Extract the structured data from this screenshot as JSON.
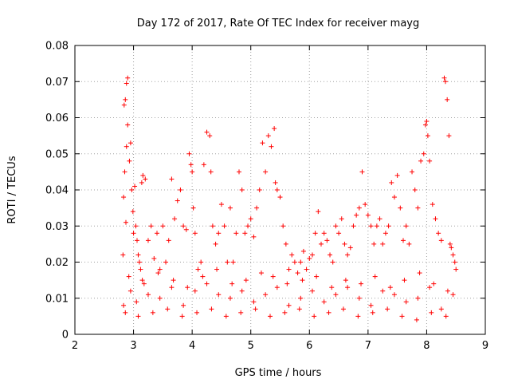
{
  "chart_data": {
    "type": "scatter",
    "title": "Day 172 of 2017, Rate Of TEC Index for receiver mayg",
    "xlabel": "GPS time / hours",
    "ylabel": "ROTI / TECUs",
    "xlim": [
      2,
      9
    ],
    "ylim": [
      0,
      0.08
    ],
    "xticks": [
      2,
      3,
      4,
      5,
      6,
      7,
      8,
      9
    ],
    "yticks": [
      0,
      0.01,
      0.02,
      0.03,
      0.04,
      0.05,
      0.06,
      0.07,
      0.08
    ],
    "xtick_labels": [
      "2",
      "3",
      "4",
      "5",
      "6",
      "7",
      "8",
      "9"
    ],
    "ytick_labels": [
      "0",
      "0.01",
      "0.02",
      "0.03",
      "0.04",
      "0.05",
      "0.06",
      "0.07",
      "0.08"
    ],
    "grid": true,
    "marker": "+",
    "marker_color": "#ff0000",
    "series": [
      {
        "name": "ROTI",
        "x": [
          2.82,
          2.84,
          2.86,
          2.88,
          2.9,
          2.9,
          2.88,
          2.85,
          2.83,
          2.87,
          2.93,
          2.95,
          2.97,
          2.99,
          3.0,
          3.02,
          3.04,
          3.06,
          3.08,
          3.1,
          3.12,
          3.14,
          3.16,
          3.2,
          3.25,
          3.3,
          3.35,
          3.4,
          3.45,
          3.5,
          3.55,
          3.6,
          3.65,
          3.7,
          3.75,
          3.8,
          3.85,
          3.9,
          3.95,
          3.98,
          4.0,
          4.02,
          4.05,
          4.1,
          4.15,
          4.2,
          4.25,
          4.3,
          4.32,
          4.35,
          4.4,
          4.45,
          4.5,
          4.55,
          4.6,
          4.65,
          4.7,
          4.75,
          4.8,
          4.85,
          4.9,
          4.95,
          5.0,
          5.05,
          5.1,
          5.15,
          5.2,
          5.25,
          5.3,
          5.35,
          5.4,
          5.42,
          5.45,
          5.5,
          5.55,
          5.6,
          5.65,
          5.7,
          5.75,
          5.8,
          5.85,
          5.9,
          5.95,
          6.0,
          6.05,
          6.1,
          6.15,
          6.2,
          6.25,
          6.3,
          6.35,
          6.4,
          6.45,
          6.5,
          6.55,
          6.6,
          6.65,
          6.7,
          6.75,
          6.8,
          6.85,
          6.9,
          6.95,
          7.0,
          7.05,
          7.1,
          7.15,
          7.2,
          7.25,
          7.3,
          7.35,
          7.4,
          7.45,
          7.5,
          7.55,
          7.6,
          7.65,
          7.7,
          7.75,
          7.8,
          7.85,
          7.9,
          7.95,
          7.98,
          8.0,
          8.02,
          8.05,
          8.1,
          8.15,
          8.2,
          8.25,
          8.3,
          8.32,
          8.35,
          8.38,
          8.4,
          8.42,
          8.45,
          8.48,
          8.5,
          2.83,
          2.95,
          3.05,
          3.15,
          3.25,
          3.45,
          3.65,
          3.85,
          4.05,
          4.25,
          4.45,
          4.65,
          4.85,
          5.05,
          5.25,
          5.45,
          5.65,
          5.85,
          6.05,
          6.25,
          6.45,
          6.65,
          6.85,
          7.05,
          7.25,
          7.45,
          7.65,
          7.85,
          8.05,
          8.25,
          8.45,
          2.92,
          3.18,
          3.42,
          3.68,
          3.92,
          4.18,
          4.42,
          4.68,
          4.92,
          5.18,
          5.38,
          5.62,
          5.88,
          6.12,
          6.38,
          6.62,
          6.88,
          7.12,
          7.38,
          7.62,
          7.88,
          8.12,
          8.36,
          2.86,
          3.08,
          3.33,
          3.58,
          3.83,
          4.08,
          4.33,
          4.58,
          4.83,
          5.08,
          5.33,
          5.58,
          5.83,
          6.08,
          6.33,
          6.58,
          6.83,
          7.08,
          7.33,
          7.58,
          7.83,
          8.08,
          8.33
        ],
        "y": [
          0.022,
          0.0635,
          0.065,
          0.0695,
          0.071,
          0.058,
          0.052,
          0.045,
          0.038,
          0.031,
          0.048,
          0.053,
          0.04,
          0.034,
          0.028,
          0.041,
          0.03,
          0.026,
          0.022,
          0.02,
          0.018,
          0.042,
          0.044,
          0.043,
          0.026,
          0.03,
          0.021,
          0.028,
          0.018,
          0.03,
          0.02,
          0.026,
          0.043,
          0.032,
          0.037,
          0.04,
          0.03,
          0.029,
          0.05,
          0.047,
          0.045,
          0.035,
          0.028,
          0.018,
          0.02,
          0.047,
          0.056,
          0.055,
          0.045,
          0.03,
          0.025,
          0.028,
          0.036,
          0.03,
          0.02,
          0.035,
          0.02,
          0.028,
          0.045,
          0.04,
          0.028,
          0.03,
          0.032,
          0.027,
          0.035,
          0.04,
          0.053,
          0.045,
          0.055,
          0.052,
          0.057,
          0.042,
          0.04,
          0.038,
          0.03,
          0.025,
          0.018,
          0.022,
          0.02,
          0.017,
          0.02,
          0.023,
          0.018,
          0.021,
          0.022,
          0.028,
          0.034,
          0.025,
          0.028,
          0.026,
          0.022,
          0.02,
          0.03,
          0.028,
          0.032,
          0.025,
          0.022,
          0.024,
          0.03,
          0.033,
          0.035,
          0.045,
          0.036,
          0.033,
          0.03,
          0.025,
          0.03,
          0.032,
          0.025,
          0.028,
          0.03,
          0.042,
          0.038,
          0.044,
          0.035,
          0.026,
          0.03,
          0.025,
          0.045,
          0.04,
          0.035,
          0.048,
          0.05,
          0.058,
          0.059,
          0.055,
          0.048,
          0.036,
          0.032,
          0.028,
          0.026,
          0.071,
          0.07,
          0.065,
          0.055,
          0.025,
          0.024,
          0.022,
          0.02,
          0.018,
          0.008,
          0.012,
          0.009,
          0.015,
          0.011,
          0.01,
          0.013,
          0.008,
          0.012,
          0.014,
          0.011,
          0.01,
          0.012,
          0.009,
          0.011,
          0.013,
          0.008,
          0.01,
          0.012,
          0.009,
          0.011,
          0.013,
          0.01,
          0.008,
          0.012,
          0.011,
          0.009,
          0.01,
          0.013,
          0.007,
          0.011,
          0.016,
          0.014,
          0.017,
          0.015,
          0.013,
          0.016,
          0.018,
          0.014,
          0.015,
          0.017,
          0.016,
          0.014,
          0.015,
          0.016,
          0.013,
          0.015,
          0.014,
          0.016,
          0.013,
          0.015,
          0.017,
          0.014,
          0.012,
          0.006,
          0.005,
          0.006,
          0.007,
          0.005,
          0.006,
          0.007,
          0.005,
          0.006,
          0.007,
          0.005,
          0.006,
          0.007,
          0.005,
          0.006,
          0.007,
          0.005,
          0.006,
          0.007,
          0.005,
          0.004,
          0.006,
          0.005
        ]
      }
    ]
  }
}
